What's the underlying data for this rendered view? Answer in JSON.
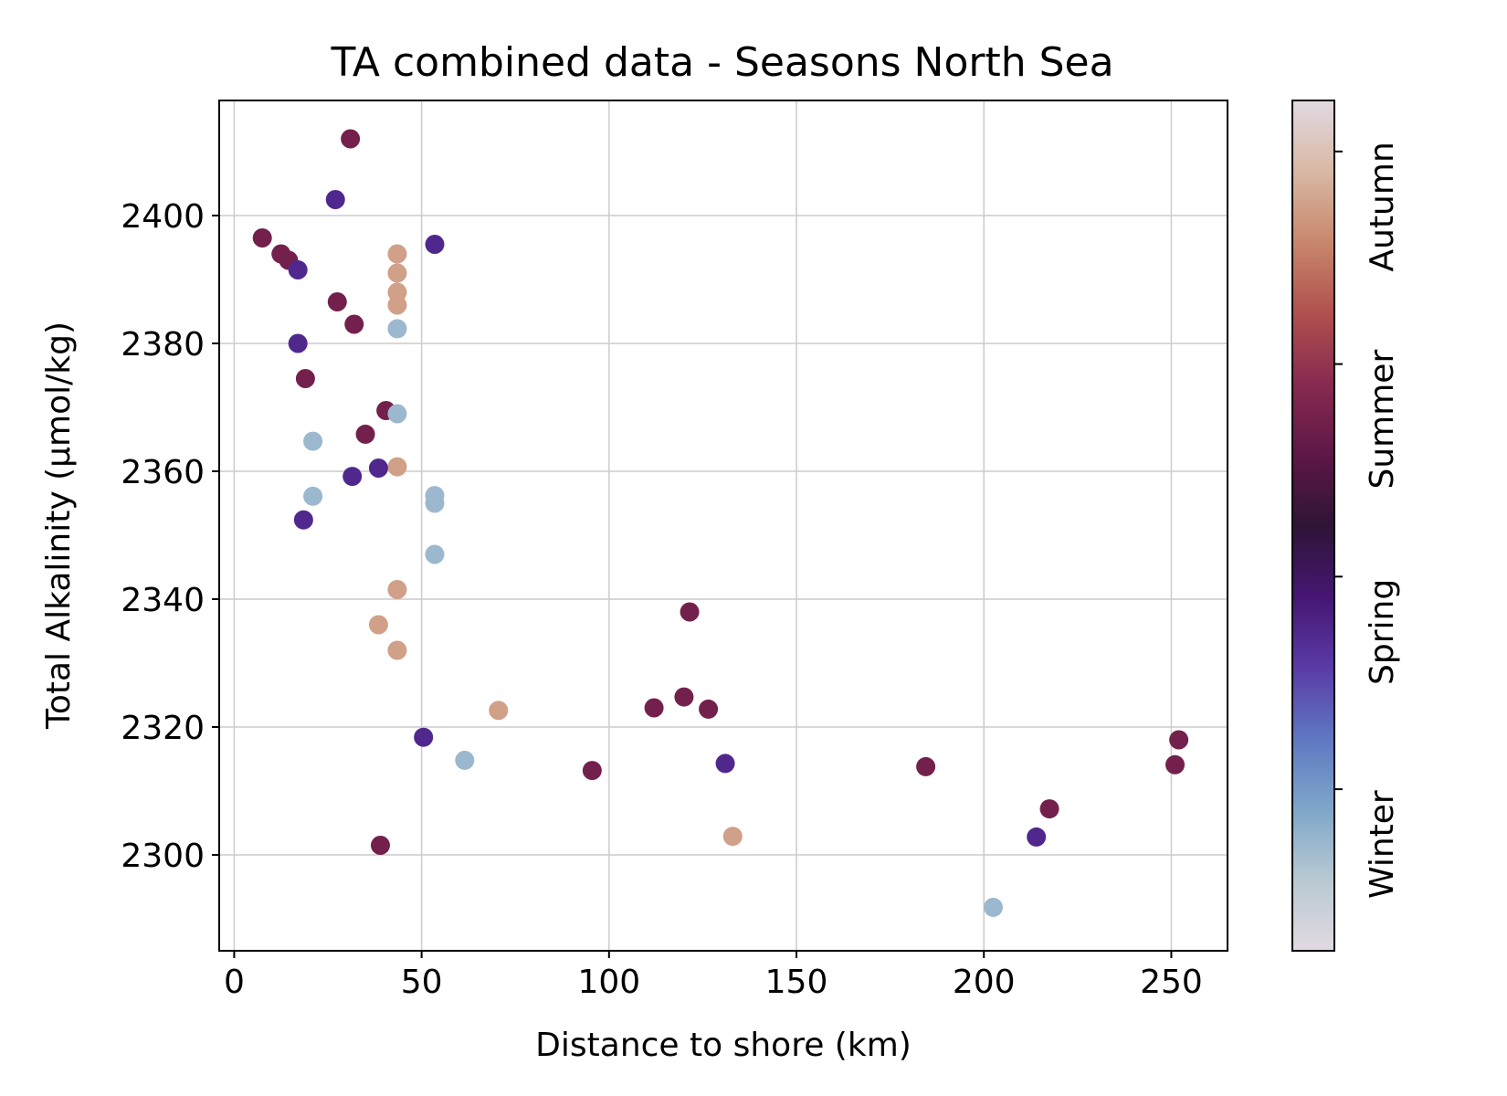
{
  "chart_data": {
    "type": "scatter",
    "title": "TA combined data - Seasons North Sea",
    "xlabel": "Distance to shore (km)",
    "ylabel": "Total Alkalinity (µmol/kg)",
    "xlim": [
      -4,
      265
    ],
    "ylim": [
      2285,
      2418
    ],
    "xticks": [
      0,
      50,
      100,
      150,
      200,
      250
    ],
    "yticks": [
      2300,
      2320,
      2340,
      2360,
      2380,
      2400
    ],
    "grid": true,
    "colorbar": {
      "colormap": "twilight",
      "labels": [
        "Winter",
        "Spring",
        "Summer",
        "Autumn"
      ],
      "stops": [
        "#e2d9e2",
        "#b8c9d2",
        "#7ea6c9",
        "#5f77c2",
        "#5a3aa6",
        "#451673",
        "#2f1436",
        "#5e1747",
        "#882a50",
        "#b0504e",
        "#c8876c",
        "#d8b8a4",
        "#e2d9e2"
      ]
    },
    "points": [
      {
        "x": 31,
        "y": 2412,
        "season": "Summer"
      },
      {
        "x": 27,
        "y": 2402.5,
        "season": "Spring"
      },
      {
        "x": 7.5,
        "y": 2396.5,
        "season": "Summer"
      },
      {
        "x": 12.5,
        "y": 2394,
        "season": "Summer"
      },
      {
        "x": 14.5,
        "y": 2393,
        "season": "Summer"
      },
      {
        "x": 17,
        "y": 2391.5,
        "season": "Spring"
      },
      {
        "x": 53.5,
        "y": 2395.5,
        "season": "Spring"
      },
      {
        "x": 43.5,
        "y": 2394,
        "season": "Autumn"
      },
      {
        "x": 43.5,
        "y": 2391,
        "season": "Autumn"
      },
      {
        "x": 43.5,
        "y": 2388,
        "season": "Autumn"
      },
      {
        "x": 43.5,
        "y": 2386,
        "season": "Autumn"
      },
      {
        "x": 27.5,
        "y": 2386.5,
        "season": "Summer"
      },
      {
        "x": 32,
        "y": 2383,
        "season": "Summer"
      },
      {
        "x": 43.5,
        "y": 2382.3,
        "season": "Winter"
      },
      {
        "x": 17,
        "y": 2380,
        "season": "Spring"
      },
      {
        "x": 19,
        "y": 2374.5,
        "season": "Summer"
      },
      {
        "x": 40.5,
        "y": 2369.5,
        "season": "Summer"
      },
      {
        "x": 43.5,
        "y": 2369,
        "season": "Winter"
      },
      {
        "x": 35,
        "y": 2365.8,
        "season": "Summer"
      },
      {
        "x": 21,
        "y": 2364.7,
        "season": "Winter"
      },
      {
        "x": 43.5,
        "y": 2360.7,
        "season": "Autumn"
      },
      {
        "x": 38.5,
        "y": 2360.5,
        "season": "Spring"
      },
      {
        "x": 31.5,
        "y": 2359.2,
        "season": "Spring"
      },
      {
        "x": 21,
        "y": 2356.1,
        "season": "Winter"
      },
      {
        "x": 53.5,
        "y": 2356.2,
        "season": "Winter"
      },
      {
        "x": 53.5,
        "y": 2355,
        "season": "Winter"
      },
      {
        "x": 18.5,
        "y": 2352.4,
        "season": "Spring"
      },
      {
        "x": 53.5,
        "y": 2347,
        "season": "Winter"
      },
      {
        "x": 43.5,
        "y": 2341.5,
        "season": "Autumn"
      },
      {
        "x": 121.5,
        "y": 2338,
        "season": "Summer"
      },
      {
        "x": 38.5,
        "y": 2336,
        "season": "Autumn"
      },
      {
        "x": 43.5,
        "y": 2332,
        "season": "Autumn"
      },
      {
        "x": 70.5,
        "y": 2322.6,
        "season": "Autumn"
      },
      {
        "x": 112,
        "y": 2323,
        "season": "Summer"
      },
      {
        "x": 120,
        "y": 2324.7,
        "season": "Summer"
      },
      {
        "x": 126.5,
        "y": 2322.8,
        "season": "Summer"
      },
      {
        "x": 50.5,
        "y": 2318.4,
        "season": "Spring"
      },
      {
        "x": 61.5,
        "y": 2314.8,
        "season": "Winter"
      },
      {
        "x": 95.5,
        "y": 2313.2,
        "season": "Summer"
      },
      {
        "x": 131,
        "y": 2314.3,
        "season": "Spring"
      },
      {
        "x": 184.5,
        "y": 2313.8,
        "season": "Summer"
      },
      {
        "x": 252,
        "y": 2318,
        "season": "Summer"
      },
      {
        "x": 251,
        "y": 2314.1,
        "season": "Summer"
      },
      {
        "x": 217.5,
        "y": 2307.2,
        "season": "Summer"
      },
      {
        "x": 133,
        "y": 2302.9,
        "season": "Autumn"
      },
      {
        "x": 214,
        "y": 2302.8,
        "season": "Spring"
      },
      {
        "x": 39,
        "y": 2301.5,
        "season": "Summer"
      },
      {
        "x": 202.5,
        "y": 2291.8,
        "season": "Winter"
      }
    ]
  }
}
